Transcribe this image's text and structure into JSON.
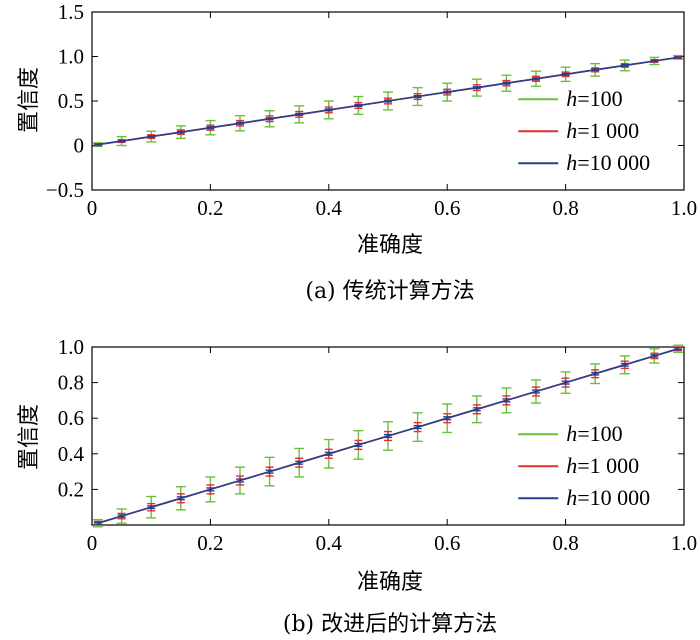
{
  "chart_data": [
    {
      "type": "line",
      "caption": "(a) 传统计算方法",
      "xlabel": "准确度",
      "ylabel": "置信度",
      "xlim": [
        0,
        1.0
      ],
      "ylim": [
        -0.5,
        1.5
      ],
      "xticks": [
        "0",
        "0.2",
        "0.4",
        "0.6",
        "0.8",
        "1.0"
      ],
      "yticks": [
        "−0.5",
        "0",
        "0.5",
        "1.0",
        "1.5"
      ],
      "legend": "right",
      "grid": false,
      "x": [
        0.01,
        0.05,
        0.1,
        0.15,
        0.2,
        0.25,
        0.3,
        0.35,
        0.4,
        0.45,
        0.5,
        0.55,
        0.6,
        0.65,
        0.7,
        0.75,
        0.8,
        0.85,
        0.9,
        0.95,
        0.99
      ],
      "series": [
        {
          "legend_prefix": "h",
          "legend_suffix": "=100",
          "color": "#6cbf3c",
          "error": [
            0.02,
            0.05,
            0.06,
            0.07,
            0.08,
            0.085,
            0.09,
            0.095,
            0.1,
            0.1,
            0.1,
            0.1,
            0.1,
            0.095,
            0.09,
            0.085,
            0.08,
            0.07,
            0.06,
            0.04,
            0.02
          ]
        },
        {
          "legend_prefix": "h",
          "legend_suffix": "=1 000",
          "color": "#e03030",
          "error": [
            0.01,
            0.015,
            0.02,
            0.025,
            0.028,
            0.03,
            0.032,
            0.032,
            0.032,
            0.032,
            0.032,
            0.032,
            0.032,
            0.032,
            0.03,
            0.028,
            0.025,
            0.022,
            0.02,
            0.015,
            0.01
          ]
        },
        {
          "legend_prefix": "h",
          "legend_suffix": "=10 000",
          "color": "#2a3f8f",
          "error": [
            0.005,
            0.006,
            0.008,
            0.008,
            0.01,
            0.01,
            0.01,
            0.01,
            0.01,
            0.01,
            0.01,
            0.01,
            0.01,
            0.01,
            0.01,
            0.01,
            0.01,
            0.008,
            0.008,
            0.006,
            0.005
          ]
        }
      ]
    },
    {
      "type": "line",
      "caption": "(b) 改进后的计算方法",
      "xlabel": "准确度",
      "ylabel": "置信度",
      "xlim": [
        0,
        1.0
      ],
      "ylim": [
        0,
        1.0
      ],
      "xticks": [
        "0",
        "0.2",
        "0.4",
        "0.6",
        "0.8",
        "1.0"
      ],
      "yticks": [
        "0.2",
        "0.4",
        "0.6",
        "0.8",
        "1.0"
      ],
      "legend": "right",
      "grid": false,
      "x": [
        0.01,
        0.05,
        0.1,
        0.15,
        0.2,
        0.25,
        0.3,
        0.35,
        0.4,
        0.45,
        0.5,
        0.55,
        0.6,
        0.65,
        0.7,
        0.75,
        0.8,
        0.85,
        0.9,
        0.95,
        0.99
      ],
      "series": [
        {
          "legend_prefix": "h",
          "legend_suffix": "=100",
          "color": "#6cbf3c",
          "error": [
            0.02,
            0.04,
            0.06,
            0.065,
            0.07,
            0.075,
            0.08,
            0.08,
            0.08,
            0.08,
            0.08,
            0.08,
            0.08,
            0.075,
            0.07,
            0.065,
            0.06,
            0.055,
            0.05,
            0.04,
            0.02
          ]
        },
        {
          "legend_prefix": "h",
          "legend_suffix": "=1 000",
          "color": "#e03030",
          "error": [
            0.01,
            0.015,
            0.02,
            0.025,
            0.025,
            0.025,
            0.025,
            0.025,
            0.025,
            0.025,
            0.025,
            0.025,
            0.025,
            0.025,
            0.025,
            0.025,
            0.025,
            0.022,
            0.02,
            0.015,
            0.01
          ]
        },
        {
          "legend_prefix": "h",
          "legend_suffix": "=10 000",
          "color": "#2a3f8f",
          "error": [
            0.005,
            0.006,
            0.007,
            0.008,
            0.008,
            0.008,
            0.008,
            0.008,
            0.008,
            0.008,
            0.008,
            0.008,
            0.008,
            0.008,
            0.008,
            0.008,
            0.008,
            0.007,
            0.007,
            0.006,
            0.005
          ]
        }
      ]
    }
  ]
}
